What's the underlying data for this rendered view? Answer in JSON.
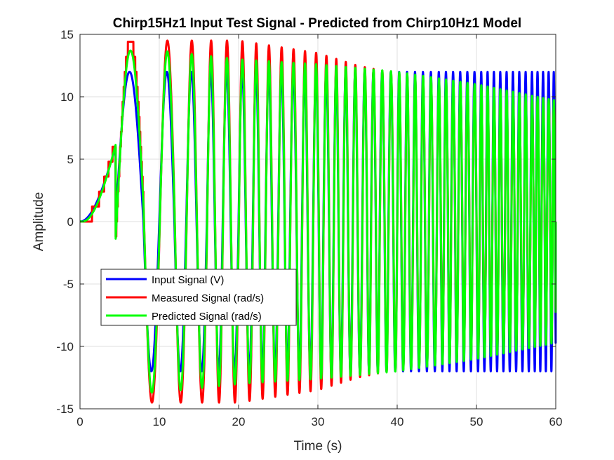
{
  "chart_data": {
    "type": "line",
    "title": "Chirp15Hz1 Input Test Signal - Predicted from Chirp10Hz1 Model",
    "xlabel": "Time (s)",
    "ylabel": "Amplitude",
    "xlim": [
      0,
      60
    ],
    "ylim": [
      -15,
      15
    ],
    "x_ticks": [
      0,
      10,
      20,
      30,
      40,
      50,
      60
    ],
    "y_ticks": [
      -15,
      -10,
      -5,
      0,
      5,
      10,
      15
    ],
    "grid": true,
    "legend_position": "lower-left",
    "series": [
      {
        "name": "Input Signal (V)",
        "color": "#0000ff",
        "waveform": "chirp",
        "amplitude_envelope": [
          [
            0,
            12
          ],
          [
            60,
            12
          ]
        ],
        "t_end_value": 0,
        "peaks": [
          4.5,
          10.0,
          13.4,
          16.0,
          18.0,
          20.0,
          21.8,
          23.4,
          25.0,
          26.5,
          28.0,
          29.4,
          30.7,
          32.0,
          33.2,
          34.4,
          35.6,
          36.7,
          37.8,
          38.9,
          40.0,
          41.0,
          42.0,
          43.0,
          44.0,
          45.0,
          45.9,
          46.8,
          47.7,
          48.6,
          49.5,
          50.4,
          51.2,
          52.0,
          52.8,
          53.6,
          54.4,
          55.2,
          56.0,
          56.8,
          57.5,
          58.2,
          58.9,
          59.6
        ],
        "troughs": [
          8.0,
          11.9,
          14.7,
          17.0,
          19.0,
          20.9,
          22.6,
          24.2,
          25.8,
          27.3,
          28.7,
          30.1,
          31.4,
          32.6,
          33.8,
          35.0,
          36.2,
          37.3,
          38.4,
          39.5,
          40.5,
          41.5,
          42.5,
          43.5,
          44.5,
          45.5,
          46.4,
          47.3,
          48.2,
          49.1,
          50.0,
          50.8,
          51.6,
          52.4,
          53.2,
          54.0,
          54.8,
          55.6,
          56.4,
          57.2,
          57.9,
          58.6,
          59.3
        ]
      },
      {
        "name": "Measured Signal (rad/s)",
        "color": "#ff0000",
        "waveform": "chirp-response",
        "amplitude_envelope": [
          [
            0,
            14.5
          ],
          [
            8,
            14.5
          ],
          [
            20,
            14.5
          ],
          [
            30,
            13.5
          ],
          [
            35,
            12.5
          ],
          [
            45,
            11.2
          ],
          [
            60,
            9.5
          ]
        ],
        "t_end_value": -7
      },
      {
        "name": "Predicted Signal (rad/s)",
        "color": "#00ff00",
        "waveform": "chirp-response",
        "amplitude_envelope": [
          [
            0,
            13.7
          ],
          [
            10,
            13.7
          ],
          [
            20,
            13.0
          ],
          [
            30,
            12.6
          ],
          [
            40,
            12.0
          ],
          [
            50,
            11.0
          ],
          [
            60,
            9.7
          ]
        ],
        "t_end_value": 0
      }
    ]
  }
}
